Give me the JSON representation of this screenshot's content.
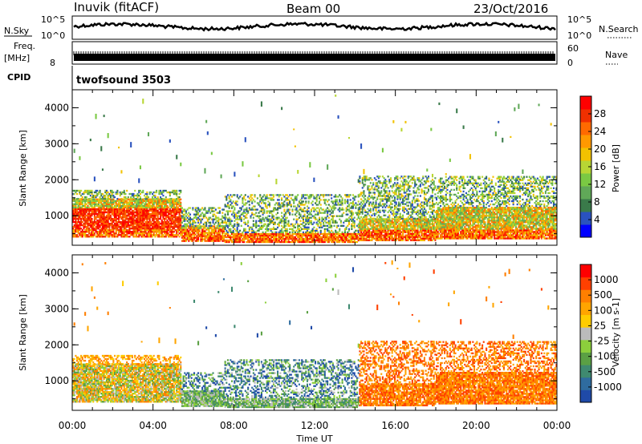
{
  "header": {
    "station": "Inuvik (fitACF)",
    "beam": "Beam 00",
    "date": "23/Oct/2016"
  },
  "top_panels": {
    "nsky_label": "N.Sky",
    "nsky_ticks": [
      "10^5",
      "10^0"
    ],
    "nsearch_label": "N.Search",
    "nsearch_ticks": [
      "10^5",
      "10^0"
    ],
    "freq_label_1": "Freq.",
    "freq_label_2": "[MHz]",
    "freq_tick": "8",
    "nave_label": "Nave",
    "nave_ticks": [
      "60",
      "0"
    ],
    "cpid_label": "CPID",
    "cpid_value": "twofsound 3503"
  },
  "chart_data": [
    {
      "type": "heatmap",
      "name": "Power",
      "ylabel": "Slant Range [km]",
      "yticks": [
        "4000",
        "3000",
        "2000",
        "1000"
      ],
      "yrange": [
        180,
        4500
      ],
      "colorbar_label": "Power [dB]",
      "colorbar_ticks": [
        "28",
        "24",
        "20",
        "16",
        "12",
        "8",
        "4"
      ],
      "colorbar_colors": [
        "#0000ff",
        "#2a52be",
        "#3a7a4a",
        "#60a858",
        "#7ac943",
        "#b8d634",
        "#f2c200",
        "#ff9900",
        "#ff6a00",
        "#f03000",
        "#ff0000"
      ]
    },
    {
      "type": "heatmap",
      "name": "Velocity",
      "ylabel": "Slant Range [km]",
      "yticks": [
        "4000",
        "3000",
        "2000",
        "1000"
      ],
      "yrange": [
        180,
        4500
      ],
      "colorbar_label": "Velocity [m s-1]",
      "colorbar_ticks": [
        "1000",
        "500",
        "100",
        "25",
        "-25",
        "-100",
        "-500",
        "-1000"
      ],
      "colorbar_colors": [
        "#1f4aa8",
        "#2f6c9f",
        "#3f8a70",
        "#5ba044",
        "#8ccf3c",
        "#bbbbbb",
        "#ffcc00",
        "#ffa500",
        "#ff7f00",
        "#ff4000",
        "#ff0000"
      ]
    }
  ],
  "xaxis": {
    "label": "Time UT",
    "ticks": [
      "00:00",
      "04:00",
      "08:00",
      "12:00",
      "16:00",
      "20:00",
      "00:00"
    ]
  }
}
